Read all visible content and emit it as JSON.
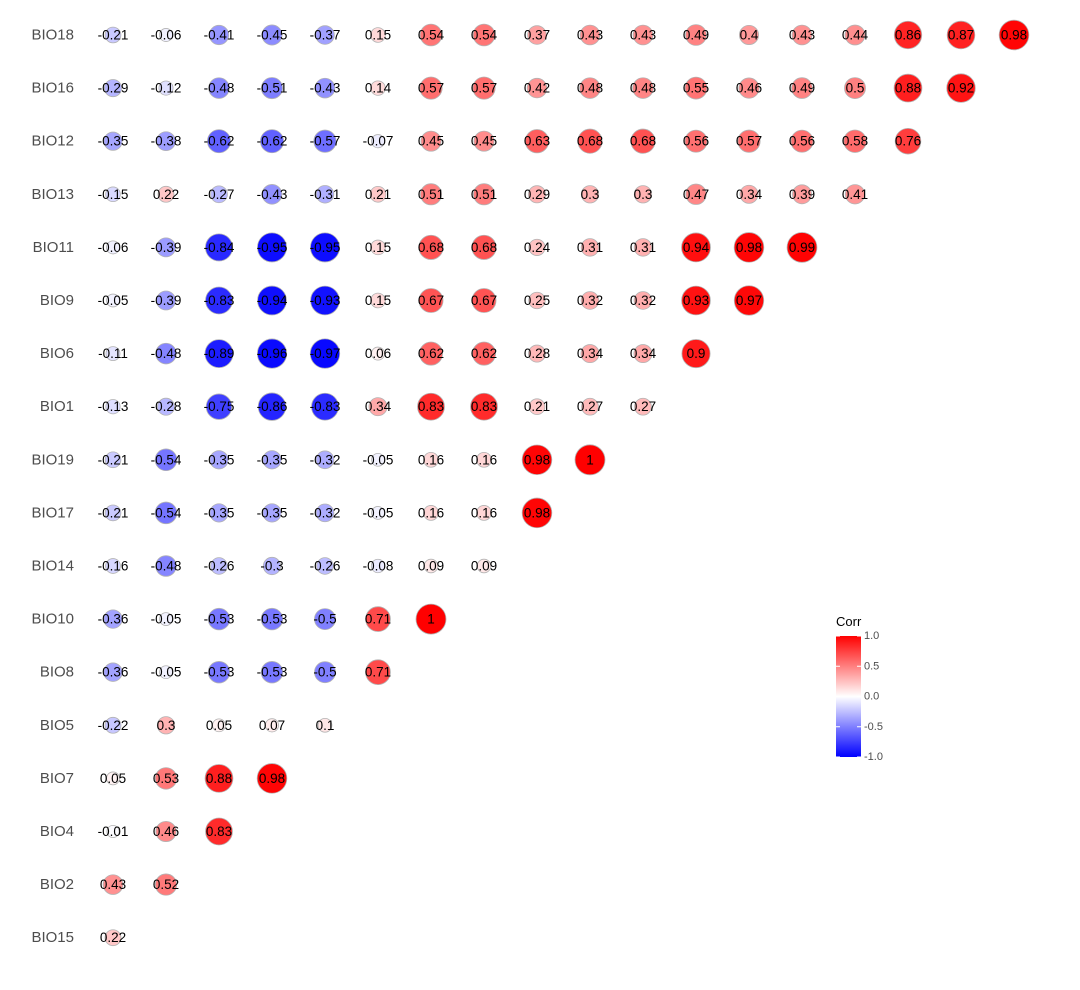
{
  "chart_data": {
    "type": "heatmap",
    "style": "lower-triangular correlation matrix, circles sized and colored by correlation",
    "rows": [
      "BIO18",
      "BIO16",
      "BIO12",
      "BIO13",
      "BIO11",
      "BIO9",
      "BIO6",
      "BIO1",
      "BIO19",
      "BIO17",
      "BIO14",
      "BIO10",
      "BIO8",
      "BIO5",
      "BIO7",
      "BIO4",
      "BIO2",
      "BIO15"
    ],
    "values": [
      [
        -0.21,
        -0.06,
        -0.41,
        -0.45,
        -0.37,
        0.15,
        0.54,
        0.54,
        0.37,
        0.43,
        0.43,
        0.49,
        0.4,
        0.43,
        0.44,
        0.86,
        0.87,
        0.98
      ],
      [
        -0.29,
        -0.12,
        -0.48,
        -0.51,
        -0.43,
        0.14,
        0.57,
        0.57,
        0.42,
        0.48,
        0.48,
        0.55,
        0.46,
        0.49,
        0.5,
        0.88,
        0.92
      ],
      [
        -0.35,
        -0.38,
        -0.62,
        -0.62,
        -0.57,
        -0.07,
        0.45,
        0.45,
        0.63,
        0.68,
        0.68,
        0.56,
        0.57,
        0.56,
        0.58,
        0.76
      ],
      [
        -0.15,
        0.22,
        -0.27,
        -0.43,
        -0.31,
        0.21,
        0.51,
        0.51,
        0.29,
        0.3,
        0.3,
        0.47,
        0.34,
        0.39,
        0.41
      ],
      [
        -0.06,
        -0.39,
        -0.84,
        -0.95,
        -0.95,
        0.15,
        0.68,
        0.68,
        0.24,
        0.31,
        0.31,
        0.94,
        0.98,
        0.99
      ],
      [
        -0.05,
        -0.39,
        -0.83,
        -0.94,
        -0.93,
        0.15,
        0.67,
        0.67,
        0.25,
        0.32,
        0.32,
        0.93,
        0.97
      ],
      [
        -0.11,
        -0.48,
        -0.89,
        -0.96,
        -0.97,
        0.06,
        0.62,
        0.62,
        0.28,
        0.34,
        0.34,
        0.9
      ],
      [
        -0.13,
        -0.28,
        -0.75,
        -0.86,
        -0.83,
        0.34,
        0.83,
        0.83,
        0.21,
        0.27,
        0.27
      ],
      [
        -0.21,
        -0.54,
        -0.35,
        -0.35,
        -0.32,
        -0.05,
        0.16,
        0.16,
        0.98,
        1
      ],
      [
        -0.21,
        -0.54,
        -0.35,
        -0.35,
        -0.32,
        -0.05,
        0.16,
        0.16,
        0.98
      ],
      [
        -0.16,
        -0.48,
        -0.26,
        -0.3,
        -0.26,
        -0.08,
        0.09,
        0.09
      ],
      [
        -0.36,
        -0.05,
        -0.53,
        -0.53,
        -0.5,
        0.71,
        1
      ],
      [
        -0.36,
        -0.05,
        -0.53,
        -0.53,
        -0.5,
        0.71
      ],
      [
        -0.22,
        0.3,
        0.05,
        0.07,
        0.1
      ],
      [
        0.05,
        0.53,
        0.88,
        0.98
      ],
      [
        -0.01,
        0.46,
        0.83
      ],
      [
        0.43,
        0.52
      ],
      [
        0.22
      ]
    ],
    "range": [
      -1,
      1
    ],
    "legend": {
      "title": "Corr",
      "ticks": [
        "1.0",
        "0.5",
        "0.0",
        "-0.5",
        "-1.0"
      ],
      "tick_values": [
        1,
        0.5,
        0,
        -0.5,
        -1
      ],
      "position": "right"
    },
    "colors": {
      "low": "#0000ff",
      "mid": "#ffffff",
      "high": "#ff0000",
      "circle_outline": "#b3b3b3",
      "row_label": "#4d4d4d",
      "cell_label": "#000000"
    },
    "grid": false
  }
}
